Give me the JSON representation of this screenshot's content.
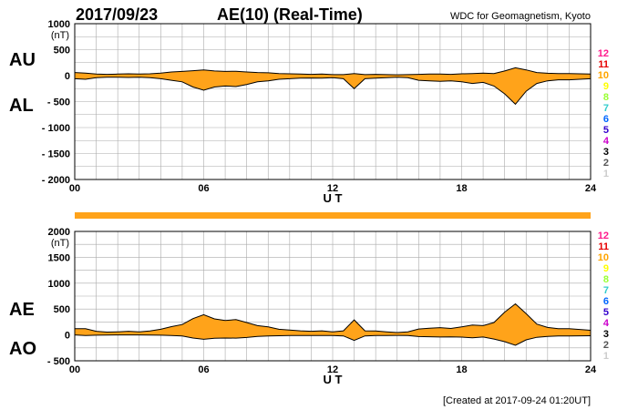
{
  "header": {
    "date": "2017/09/23",
    "title": "AE(10) (Real-Time)",
    "source": "WDC for Geomagnetism, Kyoto",
    "created": "[Created at 2017-09-24 01:20UT]"
  },
  "colors": {
    "fill": "#ffa31a",
    "line": "#000000",
    "grid": "#aaaaaa",
    "bar": "#ffa31a"
  },
  "station_numbers": [
    "12",
    "11",
    "10",
    "9",
    "8",
    "7",
    "6",
    "5",
    "4",
    "3",
    "2",
    "1"
  ],
  "station_colors": [
    "#ff1a8c",
    "#e60000",
    "#ffa500",
    "#ffff00",
    "#99ff33",
    "#33cccc",
    "#0066ff",
    "#3300cc",
    "#cc00cc",
    "#000000",
    "#555555",
    "#cccccc"
  ],
  "chart_data": [
    {
      "type": "area",
      "panel": "top",
      "side_labels": [
        "AU",
        "AL"
      ],
      "unit_label": "(nT)",
      "xlabel": "U T",
      "xticks": [
        "00",
        "06",
        "12",
        "18",
        "24"
      ],
      "xlim": [
        0,
        24
      ],
      "ylim": [
        -2000,
        1000
      ],
      "yticks": [
        "1000",
        "500",
        "0",
        "- 500",
        "- 1000",
        "- 1500",
        "- 2000"
      ],
      "ytick_values": [
        1000,
        500,
        0,
        -500,
        -1000,
        -1500,
        -2000
      ],
      "grid": true,
      "series": [
        {
          "name": "AU",
          "x": [
            0,
            0.5,
            1,
            1.5,
            2,
            2.5,
            3,
            3.5,
            4,
            4.5,
            5,
            5.5,
            6,
            6.5,
            7,
            7.5,
            8,
            8.5,
            9,
            9.5,
            10,
            10.5,
            11,
            11.5,
            12,
            12.5,
            13,
            13.5,
            14,
            14.5,
            15,
            15.5,
            16,
            16.5,
            17,
            17.5,
            18,
            18.5,
            19,
            19.5,
            20,
            20.5,
            21,
            21.5,
            22,
            22.5,
            23,
            23.5,
            24
          ],
          "values": [
            60,
            50,
            30,
            25,
            30,
            35,
            30,
            35,
            50,
            70,
            80,
            95,
            110,
            90,
            80,
            85,
            70,
            60,
            55,
            40,
            35,
            30,
            25,
            30,
            20,
            20,
            40,
            20,
            25,
            20,
            15,
            20,
            25,
            30,
            30,
            25,
            35,
            40,
            50,
            40,
            90,
            150,
            110,
            60,
            45,
            40,
            40,
            35,
            30
          ]
        },
        {
          "name": "AL",
          "x": [
            0,
            0.5,
            1,
            1.5,
            2,
            2.5,
            3,
            3.5,
            4,
            4.5,
            5,
            5.5,
            6,
            6.5,
            7,
            7.5,
            8,
            8.5,
            9,
            9.5,
            10,
            10.5,
            11,
            11.5,
            12,
            12.5,
            13,
            13.5,
            14,
            14.5,
            15,
            15.5,
            16,
            16.5,
            17,
            17.5,
            18,
            18.5,
            19,
            19.5,
            20,
            20.5,
            21,
            21.5,
            22,
            22.5,
            23,
            23.5,
            24
          ],
          "values": [
            -60,
            -70,
            -40,
            -30,
            -30,
            -35,
            -30,
            -40,
            -60,
            -90,
            -120,
            -220,
            -280,
            -220,
            -200,
            -210,
            -170,
            -120,
            -100,
            -70,
            -60,
            -50,
            -45,
            -50,
            -40,
            -60,
            -250,
            -60,
            -50,
            -40,
            -30,
            -40,
            -90,
            -100,
            -110,
            -100,
            -120,
            -150,
            -130,
            -200,
            -350,
            -550,
            -300,
            -150,
            -100,
            -80,
            -80,
            -70,
            -60
          ]
        }
      ]
    },
    {
      "type": "area",
      "panel": "bottom",
      "side_labels": [
        "AE",
        "AO"
      ],
      "unit_label": "(nT)",
      "xlabel": "U T",
      "xticks": [
        "00",
        "06",
        "12",
        "18",
        "24"
      ],
      "xlim": [
        0,
        24
      ],
      "ylim": [
        -500,
        2000
      ],
      "yticks": [
        "2000",
        "1500",
        "1000",
        "500",
        "0",
        "- 500"
      ],
      "ytick_values": [
        2000,
        1500,
        1000,
        500,
        0,
        -500
      ],
      "grid": true,
      "series": [
        {
          "name": "AE",
          "x": [
            0,
            0.5,
            1,
            1.5,
            2,
            2.5,
            3,
            3.5,
            4,
            4.5,
            5,
            5.5,
            6,
            6.5,
            7,
            7.5,
            8,
            8.5,
            9,
            9.5,
            10,
            10.5,
            11,
            11.5,
            12,
            12.5,
            13,
            13.5,
            14,
            14.5,
            15,
            15.5,
            16,
            16.5,
            17,
            17.5,
            18,
            18.5,
            19,
            19.5,
            20,
            20.5,
            21,
            21.5,
            22,
            22.5,
            23,
            23.5,
            24
          ],
          "values": [
            120,
            120,
            70,
            55,
            60,
            70,
            60,
            75,
            110,
            160,
            200,
            315,
            390,
            310,
            280,
            295,
            240,
            180,
            155,
            110,
            95,
            80,
            70,
            80,
            60,
            80,
            290,
            80,
            75,
            60,
            45,
            60,
            115,
            130,
            140,
            125,
            155,
            190,
            180,
            240,
            440,
            600,
            410,
            210,
            145,
            120,
            120,
            105,
            90
          ]
        },
        {
          "name": "AO",
          "x": [
            0,
            0.5,
            1,
            1.5,
            2,
            2.5,
            3,
            3.5,
            4,
            4.5,
            5,
            5.5,
            6,
            6.5,
            7,
            7.5,
            8,
            8.5,
            9,
            9.5,
            10,
            10.5,
            11,
            11.5,
            12,
            12.5,
            13,
            13.5,
            14,
            14.5,
            15,
            15.5,
            16,
            16.5,
            17,
            17.5,
            18,
            18.5,
            19,
            19.5,
            20,
            20.5,
            21,
            21.5,
            22,
            22.5,
            23,
            23.5,
            24
          ],
          "values": [
            0,
            -10,
            -5,
            -3,
            0,
            0,
            0,
            -3,
            -5,
            -10,
            -20,
            -60,
            -85,
            -65,
            -60,
            -62,
            -50,
            -30,
            -22,
            -15,
            -12,
            -10,
            -10,
            -10,
            -10,
            -20,
            -105,
            -20,
            -12,
            -10,
            -8,
            -10,
            -32,
            -35,
            -40,
            -38,
            -42,
            -55,
            -40,
            -80,
            -130,
            -200,
            -95,
            -45,
            -28,
            -20,
            -20,
            -18,
            -15
          ]
        }
      ]
    }
  ]
}
